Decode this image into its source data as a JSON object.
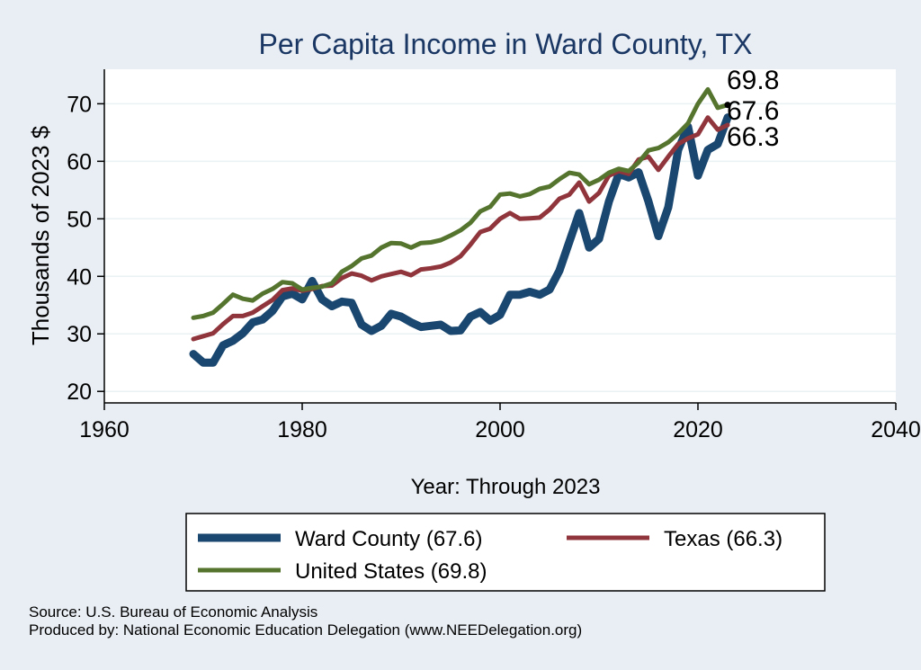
{
  "chart_data": {
    "type": "line",
    "title": "Per Capita Income in Ward County, TX",
    "xlabel": "Year: Through 2023",
    "ylabel": "Thousands of 2023 $",
    "xlim": [
      1960,
      2040
    ],
    "ylim": [
      18,
      76
    ],
    "x_ticks": [
      1960,
      1980,
      2000,
      2020,
      2040
    ],
    "y_ticks": [
      20,
      30,
      40,
      50,
      60,
      70
    ],
    "grid": true,
    "legend_position": "bottom",
    "x": [
      1969,
      1970,
      1971,
      1972,
      1973,
      1974,
      1975,
      1976,
      1977,
      1978,
      1979,
      1980,
      1981,
      1982,
      1983,
      1984,
      1985,
      1986,
      1987,
      1988,
      1989,
      1990,
      1991,
      1992,
      1993,
      1994,
      1995,
      1996,
      1997,
      1998,
      1999,
      2000,
      2001,
      2002,
      2003,
      2004,
      2005,
      2006,
      2007,
      2008,
      2009,
      2010,
      2011,
      2012,
      2013,
      2014,
      2015,
      2016,
      2017,
      2018,
      2019,
      2020,
      2021,
      2022,
      2023
    ],
    "series": [
      {
        "name": "Ward County (67.6)",
        "color": "#1a476f",
        "values": [
          26.5,
          25.0,
          25.0,
          28.0,
          28.8,
          30.1,
          32.0,
          32.5,
          34.0,
          36.5,
          37.0,
          36.0,
          39.2,
          36.0,
          34.8,
          35.6,
          35.4,
          31.6,
          30.5,
          31.4,
          33.5,
          33.0,
          32.0,
          31.2,
          31.4,
          31.6,
          30.5,
          30.6,
          33.0,
          33.8,
          32.3,
          33.3,
          36.8,
          36.8,
          37.3,
          36.8,
          37.7,
          41.0,
          46.0,
          51.0,
          45.0,
          46.5,
          53.0,
          57.8,
          57.2,
          58.1,
          53.0,
          47.0,
          52.0,
          62.0,
          66.0,
          57.5,
          62.0,
          63.0,
          67.6
        ]
      },
      {
        "name": "Texas (66.3)",
        "color": "#90353b",
        "values": [
          29.1,
          29.6,
          30.1,
          31.7,
          33.1,
          33.1,
          33.7,
          34.8,
          35.9,
          37.6,
          37.9,
          37.5,
          37.8,
          38.3,
          38.4,
          39.7,
          40.5,
          40.1,
          39.3,
          40.0,
          40.4,
          40.8,
          40.2,
          41.2,
          41.4,
          41.7,
          42.4,
          43.5,
          45.5,
          47.7,
          48.3,
          50.0,
          51.0,
          50.0,
          50.1,
          50.2,
          51.6,
          53.5,
          54.2,
          56.3,
          53.0,
          54.5,
          57.5,
          58.3,
          57.8,
          60.3,
          60.8,
          58.5,
          60.8,
          63.0,
          64.0,
          64.7,
          67.6,
          65.5,
          66.3
        ]
      },
      {
        "name": "United States (69.8)",
        "color": "#55752f",
        "values": [
          32.8,
          33.1,
          33.7,
          35.2,
          36.8,
          36.1,
          35.8,
          37.0,
          37.8,
          39.0,
          38.8,
          37.7,
          38.0,
          38.2,
          38.8,
          40.8,
          41.8,
          43.1,
          43.6,
          45.0,
          45.8,
          45.7,
          45.0,
          45.8,
          45.9,
          46.3,
          47.1,
          48.0,
          49.3,
          51.3,
          52.1,
          54.2,
          54.4,
          53.9,
          54.3,
          55.2,
          55.6,
          56.9,
          58.0,
          57.7,
          56.0,
          56.8,
          58.0,
          58.7,
          58.3,
          59.8,
          61.9,
          62.3,
          63.3,
          64.8,
          66.6,
          70.0,
          72.5,
          69.3,
          69.8
        ]
      }
    ],
    "end_labels": [
      "69.8",
      "67.6",
      "66.3"
    ]
  },
  "footnotes": {
    "source": "Source: U.S. Bureau of Economic Analysis",
    "produced": "Produced by: National Economic Education Delegation (www.NEEDelegation.org)"
  }
}
